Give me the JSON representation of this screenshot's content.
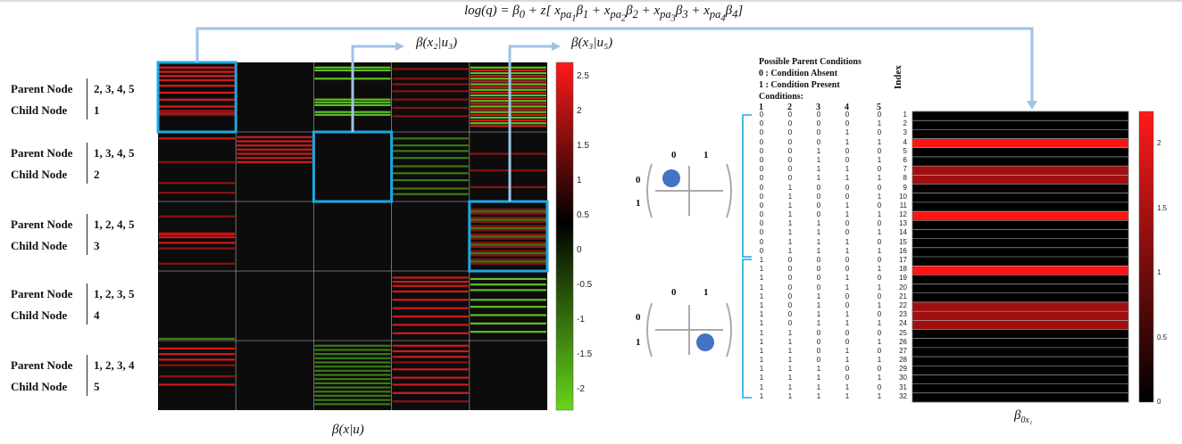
{
  "formula": "log(q) = β₀ + z[ x_{pa₁}β₁ + x_{pa₂}β₂ + x_{pa₃}β₃ + x_{pa₄}β₄]",
  "formula_parts": {
    "lhs": "log(q) = β",
    "b0": "0",
    "mid": " + z[ x",
    "pa": "pa",
    "b": "β"
  },
  "rows": [
    {
      "parent_label": "Parent Node",
      "parents": "2, 3, 4, 5",
      "child_label": "Child Node",
      "child": "1"
    },
    {
      "parent_label": "Parent Node",
      "parents": "1, 3, 4, 5",
      "child_label": "Child Node",
      "child": "2"
    },
    {
      "parent_label": "Parent Node",
      "parents": "1, 2, 4, 5",
      "child_label": "Child Node",
      "child": "3"
    },
    {
      "parent_label": "Parent Node",
      "parents": "1, 2, 3, 5",
      "child_label": "Child Node",
      "child": "4"
    },
    {
      "parent_label": "Parent Node",
      "parents": "1, 2, 3, 4",
      "child_label": "Child Node",
      "child": "5"
    }
  ],
  "heatmap": {
    "xlabel": "β(x|u)",
    "colorbar_ticks": [
      "2.5",
      "2",
      "1.5",
      "1",
      "0.5",
      "0",
      "-0.5",
      "-1",
      "-1.5",
      "-2"
    ],
    "colorbar_range": [
      -2.3,
      2.7
    ]
  },
  "callouts": {
    "a": "β(x₂|u₃)",
    "b": "β(x₃|u₅)"
  },
  "parent_conditions": {
    "title": "Possible Parent Conditions",
    "absent": "0 : Condition Absent",
    "present": "1 : Condition Present",
    "conditions_label": "Conditions:",
    "columns": [
      "1",
      "2",
      "3",
      "4",
      "5"
    ],
    "index_label": "Index"
  },
  "matrix_icons": [
    {
      "col_labels": [
        "0",
        "1"
      ],
      "row_labels": [
        "0",
        "1"
      ],
      "dot": "top-left"
    },
    {
      "col_labels": [
        "0",
        "1"
      ],
      "row_labels": [
        "0",
        "1"
      ],
      "dot": "bottom-right"
    }
  ],
  "intercept": {
    "xlabel": "β0x₁",
    "xlabel_main": "β",
    "xlabel_sub": "0x₁",
    "colorbar_ticks": [
      "2",
      "1.5",
      "1",
      "0.5",
      "0"
    ],
    "values_by_index": [
      0,
      0,
      0,
      2.3,
      0,
      0,
      1.6,
      1.6,
      0,
      0,
      0,
      2.3,
      0,
      0,
      0,
      0,
      0,
      2.3,
      0,
      0,
      0,
      1.6,
      1.6,
      1.6,
      0,
      0,
      0,
      0,
      0,
      0,
      0,
      0
    ]
  },
  "colors": {
    "highlight": "#1ea7e1",
    "arrow": "#9ec3e6",
    "dot": "#4472c4",
    "bracket": "#1ea7e1"
  }
}
